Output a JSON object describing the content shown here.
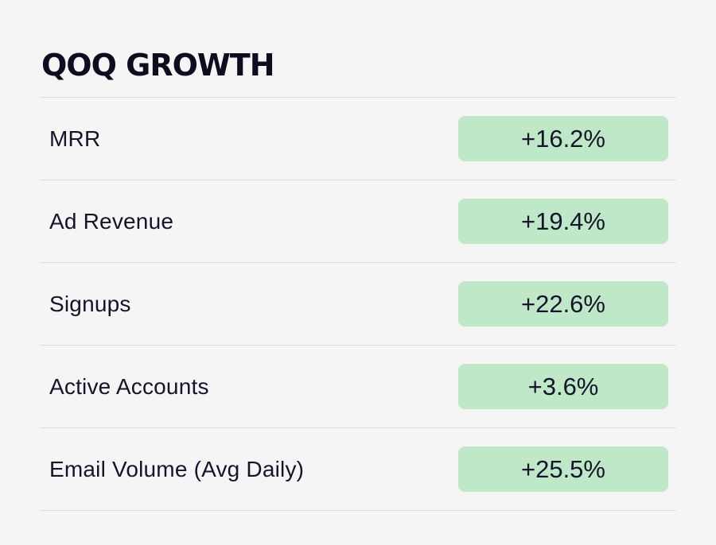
{
  "title": "QOQ GROWTH",
  "rows": [
    {
      "label": "MRR",
      "value": "+16.2%"
    },
    {
      "label": "Ad Revenue",
      "value": "+19.4%"
    },
    {
      "label": "Signups",
      "value": "+22.6%"
    },
    {
      "label": "Active Accounts",
      "value": "+3.6%"
    },
    {
      "label": "Email Volume (Avg Daily)",
      "value": "+25.5%"
    }
  ],
  "colors": {
    "background": "#f5f5f5",
    "value_badge": "#bfe8c8",
    "divider": "#dcdcdc",
    "text": "#15152a"
  }
}
